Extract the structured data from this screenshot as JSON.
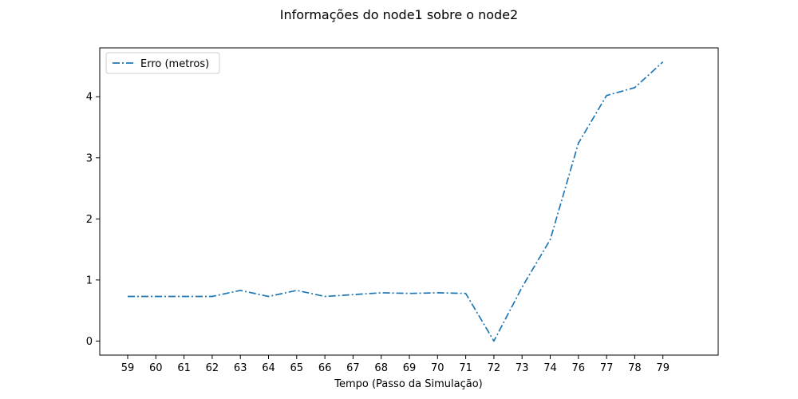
{
  "chart_data": {
    "type": "line",
    "title": "Informações do node1 sobre o node2",
    "xlabel": "Tempo (Passo da Simulação)",
    "ylabel": "",
    "categories": [
      "59",
      "60",
      "61",
      "62",
      "63",
      "64",
      "65",
      "66",
      "67",
      "68",
      "69",
      "70",
      "71",
      "72",
      "73",
      "74",
      "76",
      "77",
      "78",
      "79"
    ],
    "series": [
      {
        "name": "Erro (metros)",
        "color": "#1f77b4",
        "linestyle": "dashdot",
        "values": [
          0.73,
          0.73,
          0.73,
          0.73,
          0.83,
          0.73,
          0.83,
          0.73,
          0.76,
          0.79,
          0.78,
          0.79,
          0.78,
          0.0,
          0.88,
          1.66,
          3.24,
          4.02,
          4.15,
          4.57
        ]
      }
    ],
    "yticks": [
      0,
      1,
      2,
      3,
      4
    ],
    "ylim": [
      -0.23,
      4.8
    ],
    "grid": false,
    "legend": "top-left"
  }
}
